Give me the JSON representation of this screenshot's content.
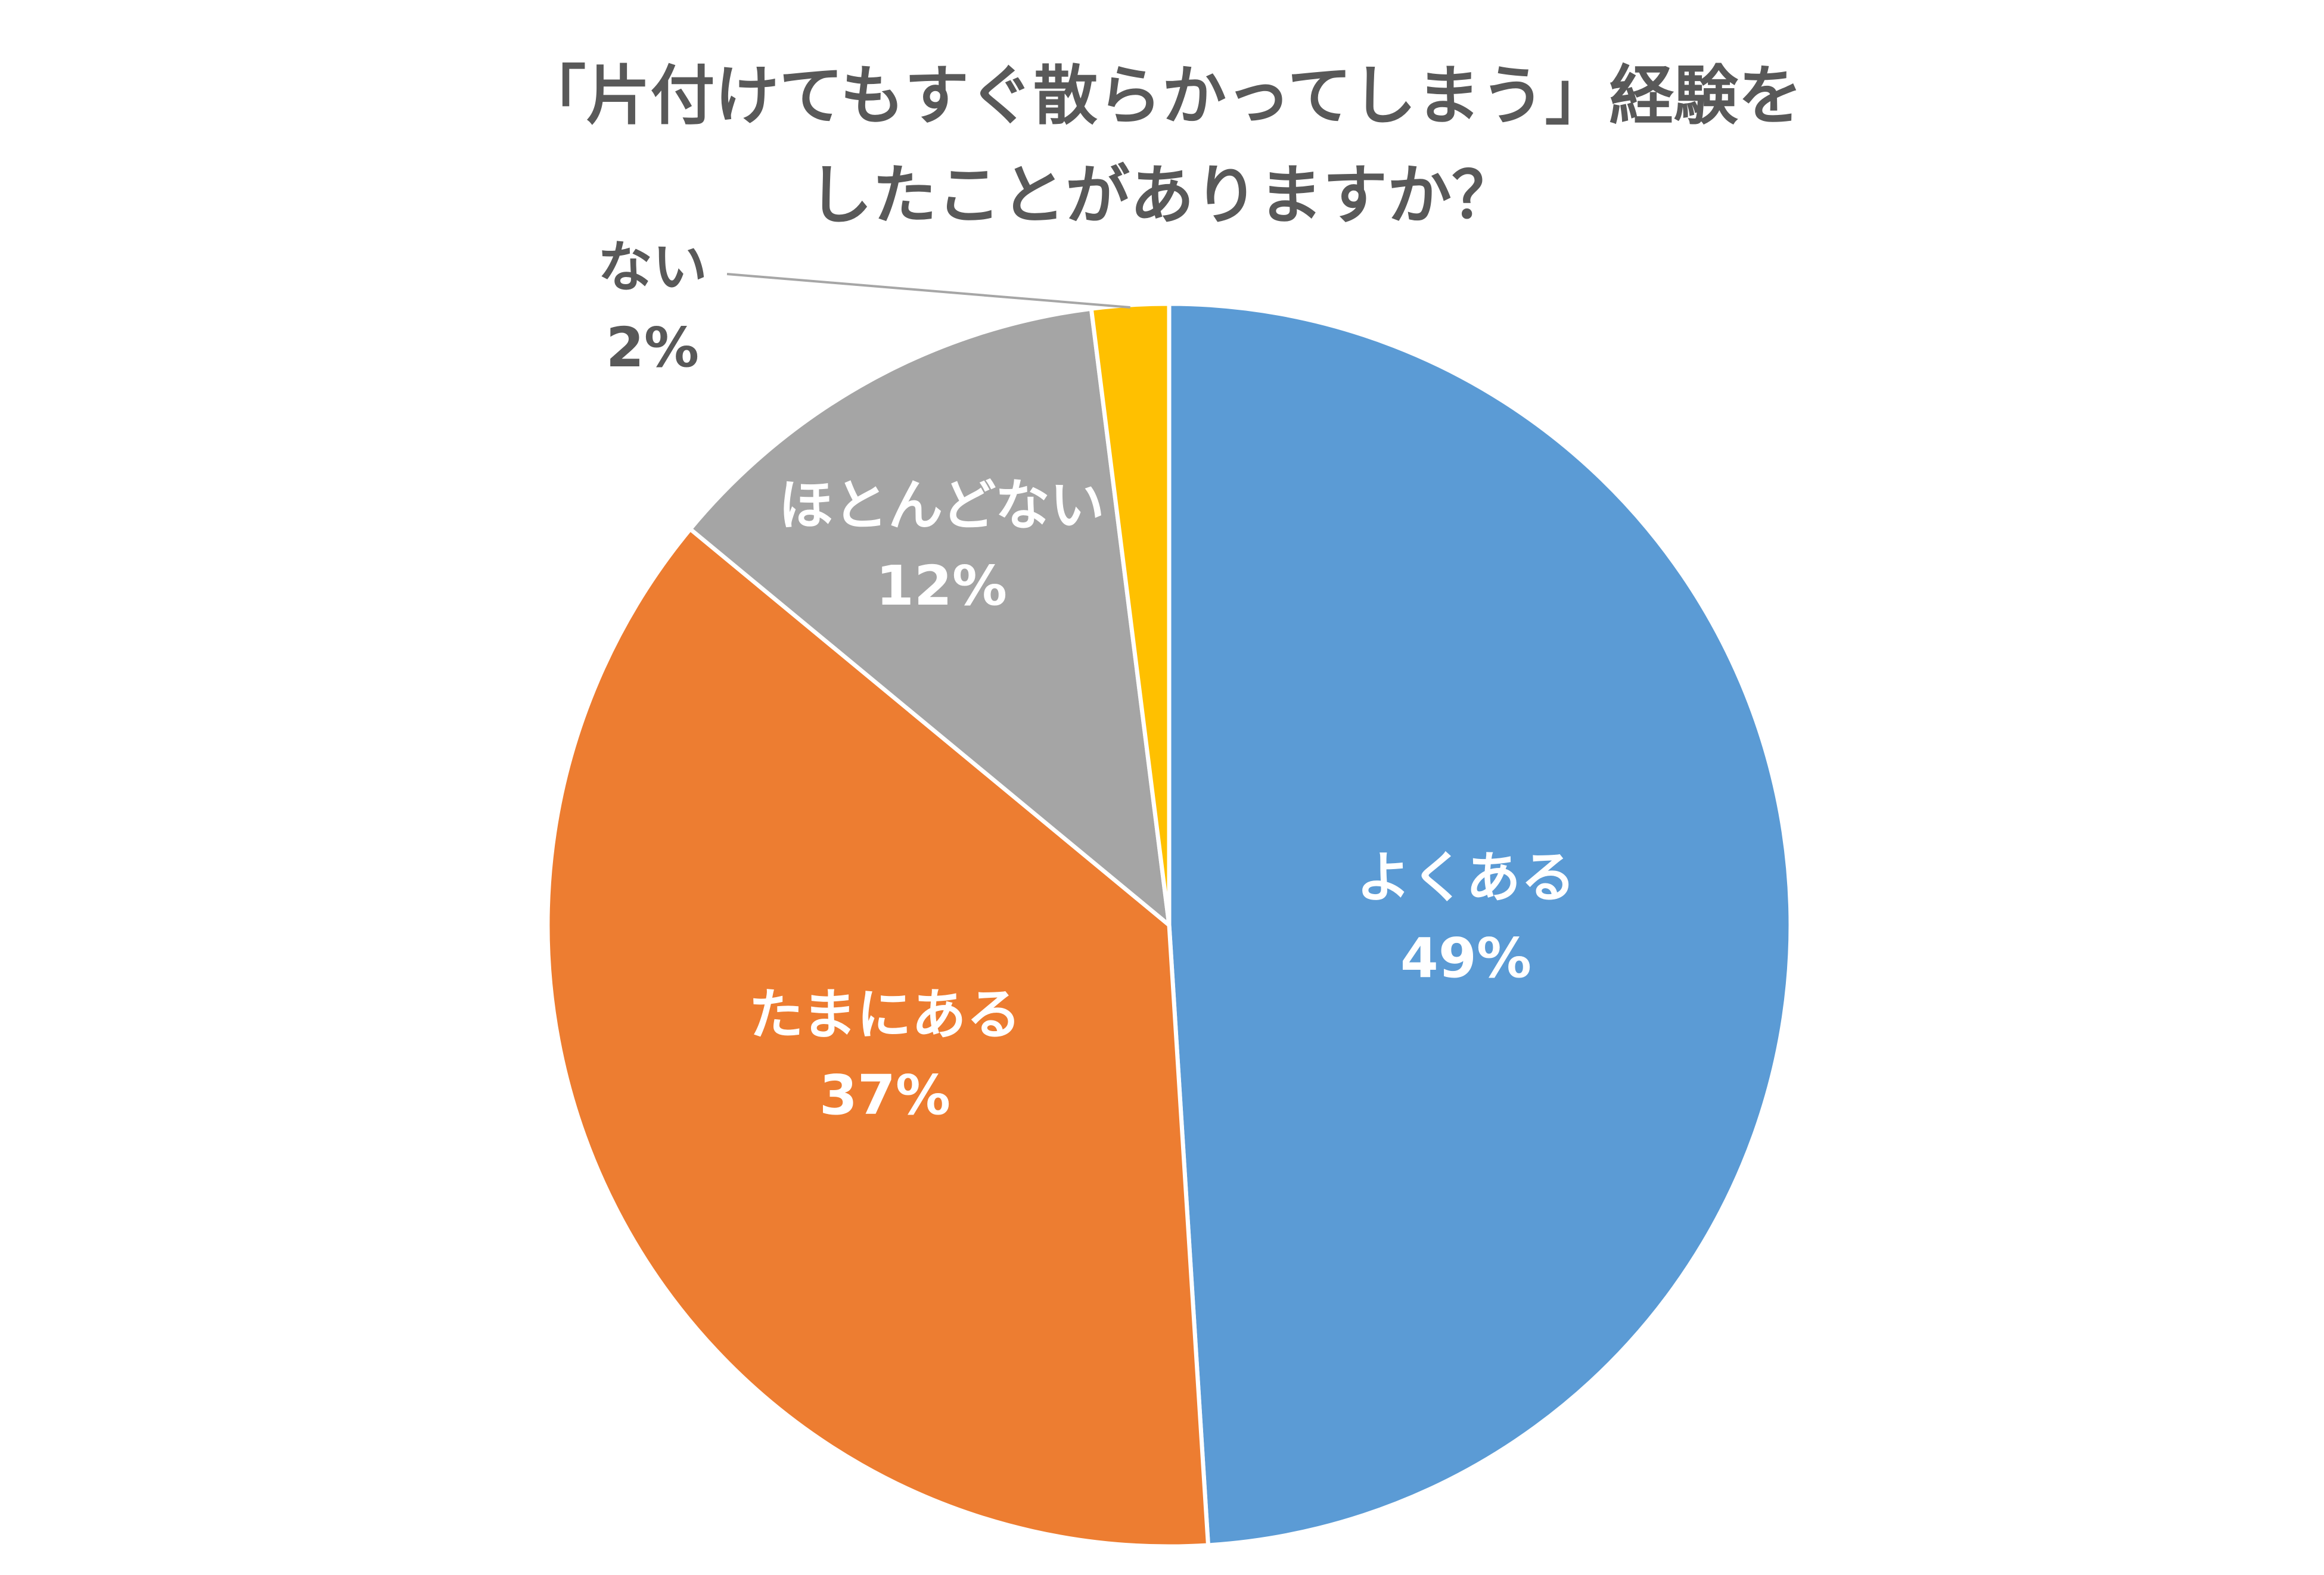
{
  "chart_data": {
    "type": "pie",
    "title": "「片付けてもすぐ散らかってしまう」経験をしたことがありますか？",
    "title_lines": [
      "「片付けてもすぐ散らかってしまう」経験を",
      "したことがありますか？"
    ],
    "start": "12 o'clock",
    "direction": "clockwise",
    "slices": [
      {
        "label": "よくある",
        "value": 49,
        "value_label": "49%",
        "color": "#5B9BD5",
        "label_color": "#ffffff"
      },
      {
        "label": "たまにある",
        "value": 37,
        "value_label": "37%",
        "color": "#ED7D31",
        "label_color": "#ffffff"
      },
      {
        "label": "ほとんどない",
        "value": 12,
        "value_label": "12%",
        "color": "#A5A5A5",
        "label_color": "#ffffff"
      },
      {
        "label": "ない",
        "value": 2,
        "value_label": "2%",
        "color": "#FFC000",
        "label_color": "#595959"
      }
    ],
    "legend": "none"
  }
}
